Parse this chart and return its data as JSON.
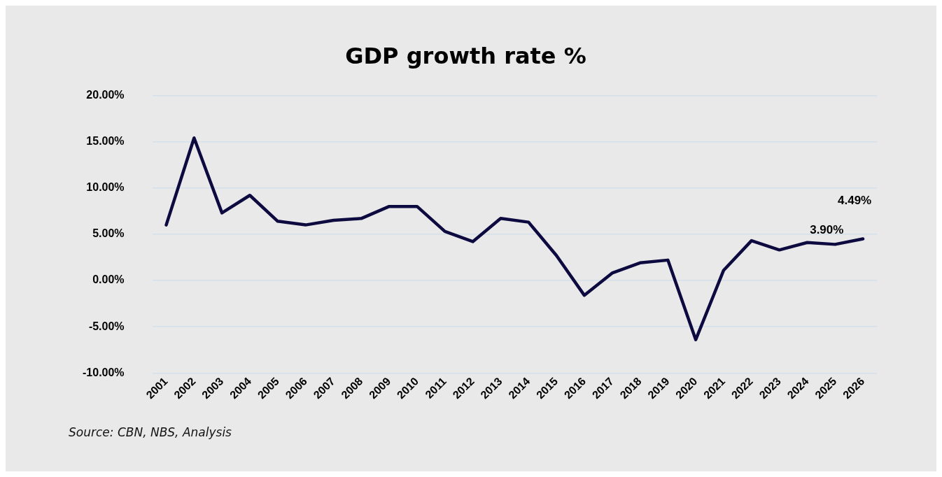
{
  "chart_data": {
    "type": "line",
    "title": "GDP growth rate %",
    "categories": [
      "2001",
      "2002",
      "2003",
      "2004",
      "2005",
      "2006",
      "2007",
      "2008",
      "2009",
      "2010",
      "2011",
      "2012",
      "2013",
      "2014",
      "2015",
      "2016",
      "2017",
      "2018",
      "2019",
      "2020",
      "2021",
      "2022",
      "2023",
      "2024",
      "2025",
      "2026"
    ],
    "series": [
      {
        "color": "#0d0a40",
        "values": [
          6.0,
          15.4,
          7.3,
          9.2,
          6.4,
          6.0,
          6.5,
          6.7,
          8.0,
          8.0,
          5.3,
          4.2,
          6.7,
          6.3,
          2.7,
          -1.6,
          0.8,
          1.9,
          2.2,
          -6.4,
          1.1,
          4.3,
          3.3,
          4.1,
          3.9,
          4.49
        ],
        "value_labels": [
          null,
          null,
          null,
          null,
          null,
          null,
          null,
          null,
          null,
          null,
          null,
          null,
          null,
          null,
          null,
          null,
          null,
          null,
          null,
          null,
          null,
          null,
          null,
          null,
          "3.90%",
          "4.49%"
        ]
      }
    ],
    "ylim": [
      -10,
      20
    ],
    "yticks": [
      {
        "value": -10,
        "label": "-10.00%"
      },
      {
        "value": -5,
        "label": "-5.00%"
      },
      {
        "value": 0,
        "label": "0.00%"
      },
      {
        "value": 5,
        "label": "5.00%"
      },
      {
        "value": 10,
        "label": "10.00%"
      },
      {
        "value": 15,
        "label": "15.00%"
      },
      {
        "value": 20,
        "label": "20.00%"
      }
    ],
    "grid": "y",
    "legend": false,
    "marker": "none",
    "line_style": "solid",
    "annotations": [
      "Source: CBN, NBS, Analysis"
    ]
  }
}
